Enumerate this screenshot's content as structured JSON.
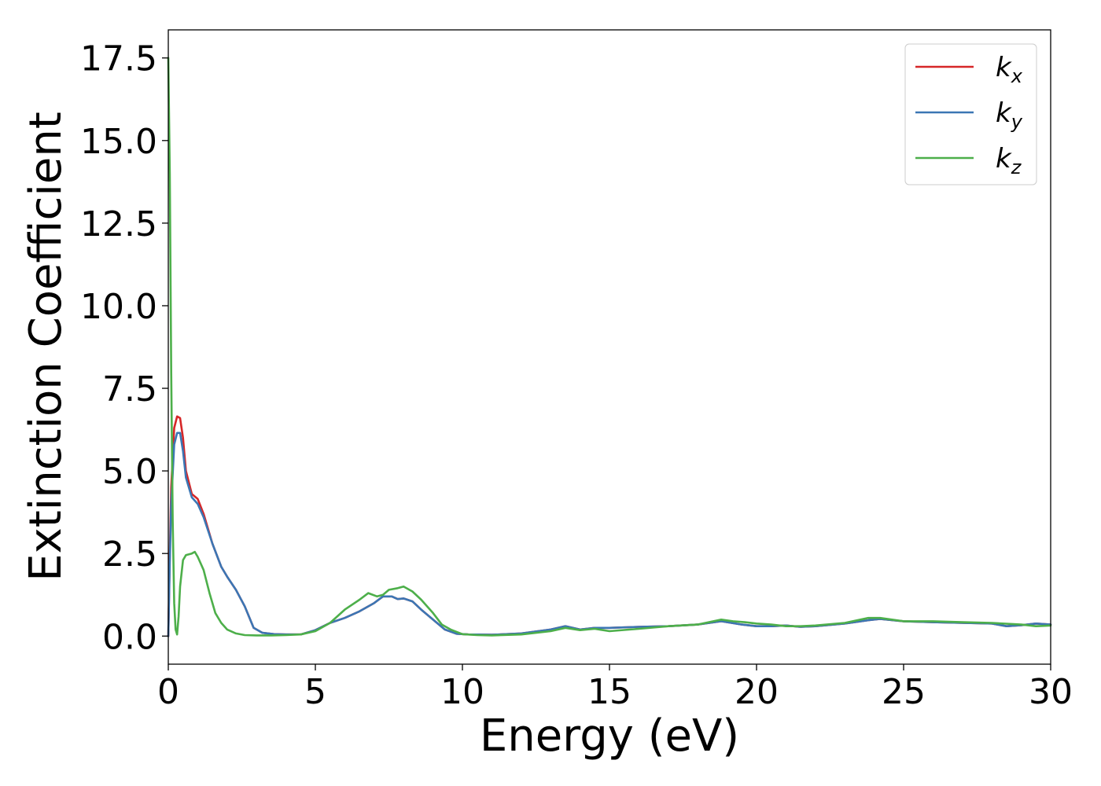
{
  "chart_data": {
    "type": "line",
    "title": "",
    "xlabel": "Energy (eV)",
    "ylabel": "Extinction Coefficient",
    "xlim": [
      0,
      30
    ],
    "ylim": [
      -0.85,
      18.35
    ],
    "xticks": [
      0,
      5,
      10,
      15,
      20,
      25,
      30
    ],
    "xtick_labels": [
      "0",
      "5",
      "10",
      "15",
      "20",
      "25",
      "30"
    ],
    "yticks": [
      0.0,
      2.5,
      5.0,
      7.5,
      10.0,
      12.5,
      15.0,
      17.5
    ],
    "ytick_labels": [
      "0.0",
      "2.5",
      "5.0",
      "7.5",
      "10.0",
      "12.5",
      "15.0",
      "17.5"
    ],
    "grid": false,
    "legend_position": "top-right",
    "series": [
      {
        "name": "kx",
        "label_base": "k",
        "label_sub": "x",
        "color": "#d62728",
        "x": [
          0,
          0.05,
          0.1,
          0.2,
          0.3,
          0.4,
          0.5,
          0.6,
          0.8,
          1.0,
          1.2,
          1.5,
          1.8,
          2.0,
          2.3,
          2.6,
          2.9,
          3.2,
          3.6,
          4.0,
          4.5,
          5.0,
          5.5,
          6.0,
          6.5,
          7.0,
          7.3,
          7.6,
          7.8,
          8.0,
          8.3,
          8.6,
          9.0,
          9.4,
          9.8,
          10.2,
          11.0,
          12.0,
          13.0,
          13.5,
          14.0,
          14.5,
          15.0,
          16.0,
          17.0,
          18.0,
          18.8,
          19.5,
          20.0,
          20.5,
          21.0,
          21.5,
          22.0,
          23.0,
          23.8,
          24.2,
          25.0,
          26.0,
          27.0,
          28.0,
          28.5,
          29.0,
          29.5,
          30.0
        ],
        "values": [
          0.0,
          2.5,
          4.5,
          6.3,
          6.65,
          6.6,
          6.0,
          5.0,
          4.3,
          4.15,
          3.7,
          2.8,
          2.1,
          1.8,
          1.4,
          0.9,
          0.25,
          0.1,
          0.06,
          0.05,
          0.05,
          0.18,
          0.4,
          0.55,
          0.75,
          1.0,
          1.2,
          1.2,
          1.12,
          1.14,
          1.05,
          0.8,
          0.5,
          0.2,
          0.07,
          0.05,
          0.04,
          0.08,
          0.2,
          0.3,
          0.2,
          0.25,
          0.25,
          0.28,
          0.3,
          0.35,
          0.45,
          0.35,
          0.3,
          0.3,
          0.32,
          0.28,
          0.3,
          0.38,
          0.48,
          0.52,
          0.45,
          0.42,
          0.4,
          0.38,
          0.3,
          0.33,
          0.38,
          0.35
        ]
      },
      {
        "name": "ky",
        "label_base": "k",
        "label_sub": "y",
        "color": "#3b76b4",
        "x": [
          0,
          0.05,
          0.1,
          0.2,
          0.3,
          0.4,
          0.5,
          0.6,
          0.8,
          1.0,
          1.2,
          1.5,
          1.8,
          2.0,
          2.3,
          2.6,
          2.9,
          3.2,
          3.6,
          4.0,
          4.5,
          5.0,
          5.5,
          6.0,
          6.5,
          7.0,
          7.3,
          7.6,
          7.8,
          8.0,
          8.3,
          8.6,
          9.0,
          9.4,
          9.8,
          10.2,
          11.0,
          12.0,
          13.0,
          13.5,
          14.0,
          14.5,
          15.0,
          16.0,
          17.0,
          18.0,
          18.8,
          19.5,
          20.0,
          20.5,
          21.0,
          21.5,
          22.0,
          23.0,
          23.8,
          24.2,
          25.0,
          26.0,
          27.0,
          28.0,
          28.5,
          29.0,
          29.5,
          30.0
        ],
        "values": [
          0.0,
          2.2,
          4.0,
          5.8,
          6.15,
          6.15,
          5.6,
          4.8,
          4.2,
          4.0,
          3.6,
          2.8,
          2.1,
          1.8,
          1.4,
          0.9,
          0.25,
          0.1,
          0.06,
          0.05,
          0.05,
          0.18,
          0.4,
          0.55,
          0.75,
          1.0,
          1.2,
          1.2,
          1.12,
          1.14,
          1.05,
          0.8,
          0.5,
          0.2,
          0.07,
          0.05,
          0.04,
          0.08,
          0.2,
          0.3,
          0.2,
          0.25,
          0.25,
          0.28,
          0.3,
          0.35,
          0.45,
          0.35,
          0.3,
          0.3,
          0.32,
          0.28,
          0.3,
          0.38,
          0.48,
          0.52,
          0.45,
          0.42,
          0.4,
          0.38,
          0.3,
          0.33,
          0.38,
          0.35
        ]
      },
      {
        "name": "kz",
        "label_base": "k",
        "label_sub": "z",
        "color": "#4daf4a",
        "x": [
          0,
          0.05,
          0.1,
          0.15,
          0.2,
          0.25,
          0.3,
          0.35,
          0.4,
          0.5,
          0.6,
          0.8,
          0.9,
          1.0,
          1.2,
          1.4,
          1.6,
          1.8,
          2.0,
          2.3,
          2.6,
          3.0,
          3.5,
          4.0,
          4.5,
          5.0,
          5.5,
          6.0,
          6.5,
          6.8,
          7.1,
          7.3,
          7.5,
          7.8,
          8.0,
          8.3,
          8.6,
          9.0,
          9.3,
          9.6,
          10.0,
          10.5,
          11.0,
          12.0,
          13.0,
          13.5,
          14.0,
          14.5,
          15.0,
          16.0,
          17.0,
          18.0,
          18.8,
          19.2,
          19.6,
          20.0,
          20.5,
          21.0,
          21.5,
          22.0,
          23.0,
          23.8,
          24.2,
          25.0,
          26.0,
          27.0,
          28.0,
          29.0,
          29.5,
          30.0
        ],
        "values": [
          17.5,
          14.0,
          8.0,
          3.5,
          1.0,
          0.2,
          0.05,
          0.6,
          1.5,
          2.3,
          2.45,
          2.5,
          2.55,
          2.4,
          2.0,
          1.3,
          0.7,
          0.4,
          0.2,
          0.08,
          0.03,
          0.02,
          0.02,
          0.03,
          0.05,
          0.15,
          0.4,
          0.8,
          1.1,
          1.3,
          1.2,
          1.25,
          1.4,
          1.45,
          1.5,
          1.35,
          1.1,
          0.7,
          0.35,
          0.2,
          0.06,
          0.03,
          0.02,
          0.05,
          0.15,
          0.25,
          0.18,
          0.22,
          0.15,
          0.22,
          0.3,
          0.35,
          0.5,
          0.45,
          0.42,
          0.38,
          0.35,
          0.3,
          0.3,
          0.32,
          0.4,
          0.55,
          0.55,
          0.45,
          0.45,
          0.42,
          0.4,
          0.35,
          0.3,
          0.32
        ]
      }
    ]
  }
}
